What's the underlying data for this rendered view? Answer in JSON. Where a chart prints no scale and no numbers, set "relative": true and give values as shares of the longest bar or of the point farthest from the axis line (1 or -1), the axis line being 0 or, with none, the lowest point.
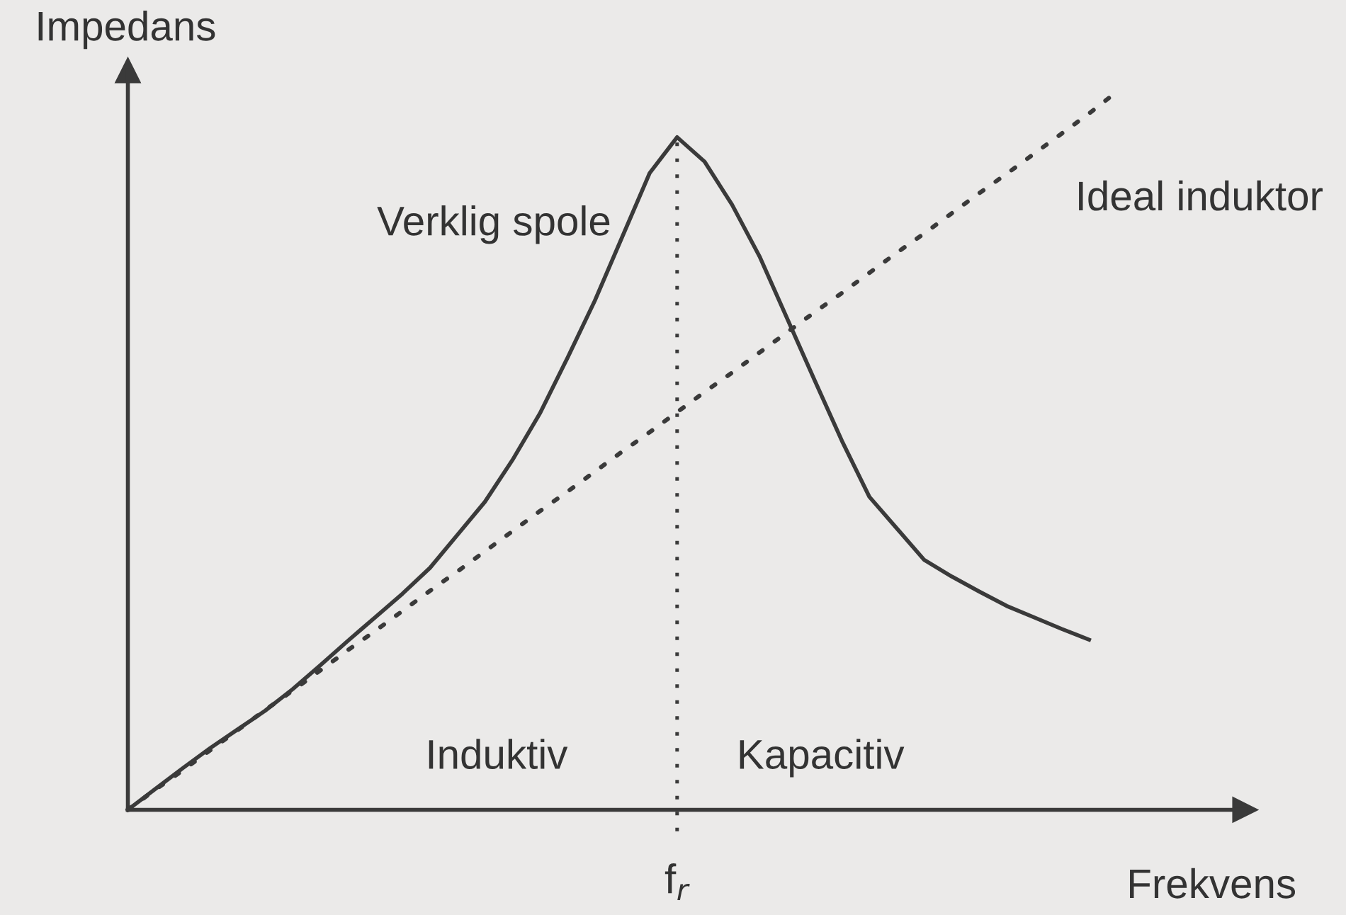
{
  "chart_data": {
    "type": "line",
    "relative": true,
    "xlabel": "Frekvens",
    "ylabel": "Impedans",
    "legend": false,
    "marker": "none",
    "categories": [
      null,
      null,
      null,
      null,
      null,
      null,
      null,
      null,
      null,
      null,
      null,
      null,
      null,
      null,
      null,
      null,
      null,
      null,
      null,
      null,
      null,
      null,
      null,
      null,
      null,
      null,
      null,
      null,
      null,
      null,
      null,
      null,
      null,
      null,
      null,
      null,
      null
    ],
    "series": [
      {
        "name": "Verklig spole",
        "color": "#3a3a3a",
        "line_style": "solid",
        "values": [
          0,
          0.029,
          0.058,
          0.086,
          0.112,
          0.138,
          0.168,
          0.201,
          0.235,
          0.268,
          0.301,
          0.337,
          0.383,
          0.429,
          0.487,
          0.552,
          0.629,
          0.709,
          0.798,
          0.887,
          0.937,
          0.903,
          0.843,
          0.771,
          0.685,
          0.599,
          0.514,
          0.436,
          0.392,
          0.348,
          0.325,
          0.304,
          0.284,
          0.268,
          0.252,
          0.237,
          null
        ]
      },
      {
        "name": "Ideal induktor",
        "color": "#3a3a3a",
        "line_style": "dotted",
        "values": [
          0,
          0.028,
          0.055,
          0.083,
          0.111,
          0.139,
          0.166,
          0.194,
          0.222,
          0.249,
          0.277,
          0.305,
          0.332,
          0.36,
          0.388,
          0.416,
          0.443,
          0.471,
          0.499,
          0.526,
          0.554,
          0.582,
          0.609,
          0.637,
          0.665,
          0.693,
          0.72,
          0.748,
          0.776,
          0.803,
          0.831,
          0.859,
          0.886,
          0.914,
          0.942,
          0.97,
          1
        ]
      }
    ],
    "ref_lines": [
      {
        "axis": "x",
        "value": "f$_{r}$",
        "line_style": "dotted"
      }
    ],
    "annotations": [
      "Induktiv",
      "Kapacitiv"
    ]
  }
}
